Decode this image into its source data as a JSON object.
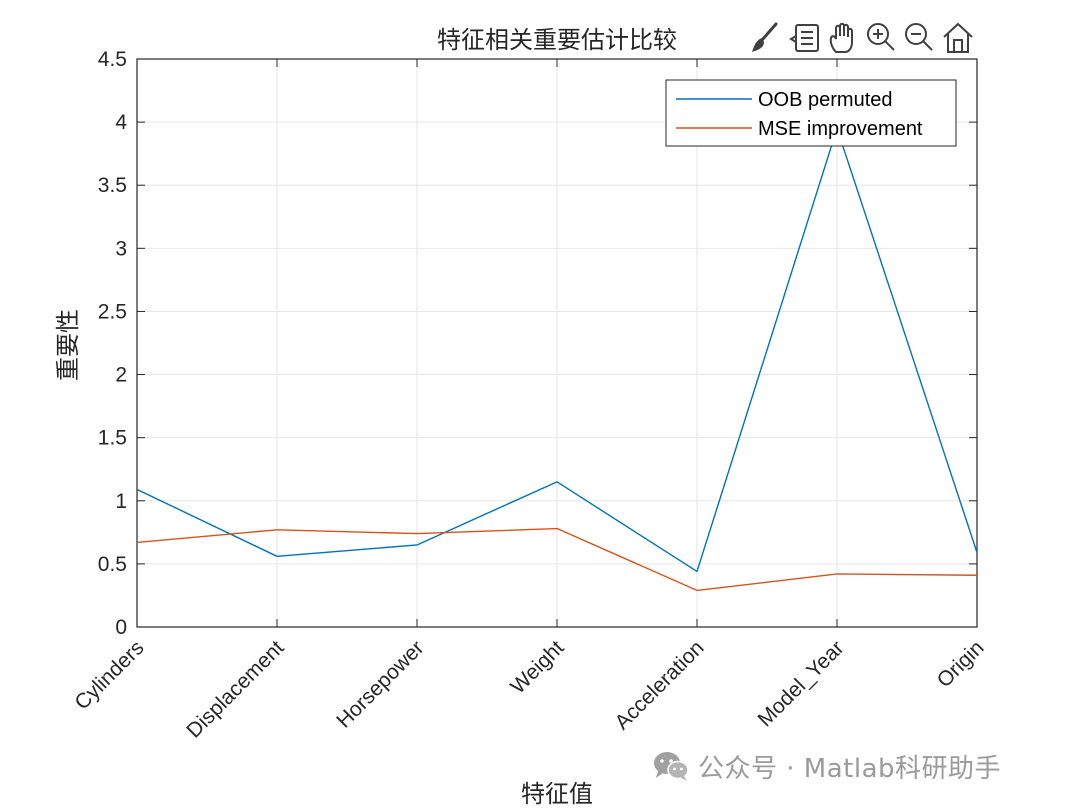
{
  "toolbar": {
    "icons": [
      "brush-icon",
      "data-tips-icon",
      "pan-icon",
      "zoom-in-icon",
      "zoom-out-icon",
      "home-icon"
    ]
  },
  "colors": {
    "series1": "#0072BD",
    "series2": "#D95319",
    "axis": "#262626",
    "grid": "#e6e6e6"
  },
  "chart_data": {
    "type": "line",
    "title": "特征相关重要估计比较",
    "xlabel": "特征值",
    "ylabel": "重要性",
    "categories": [
      "Cylinders",
      "Displacement",
      "Horsepower",
      "Weight",
      "Acceleration",
      "Model_Year",
      "Origin"
    ],
    "ylim": [
      0,
      4.5
    ],
    "yticks": [
      "0",
      "0.5",
      "1",
      "1.5",
      "2",
      "2.5",
      "3",
      "3.5",
      "4",
      "4.5"
    ],
    "grid": true,
    "legend_position": "top-right",
    "series": [
      {
        "name": "OOB permuted",
        "values": [
          1.09,
          0.56,
          0.65,
          1.15,
          0.44,
          3.95,
          0.59
        ]
      },
      {
        "name": "MSE improvement",
        "values": [
          0.67,
          0.77,
          0.74,
          0.78,
          0.29,
          0.42,
          0.41
        ]
      }
    ]
  },
  "watermark": {
    "text": "公众号 · Matlab科研助手"
  }
}
